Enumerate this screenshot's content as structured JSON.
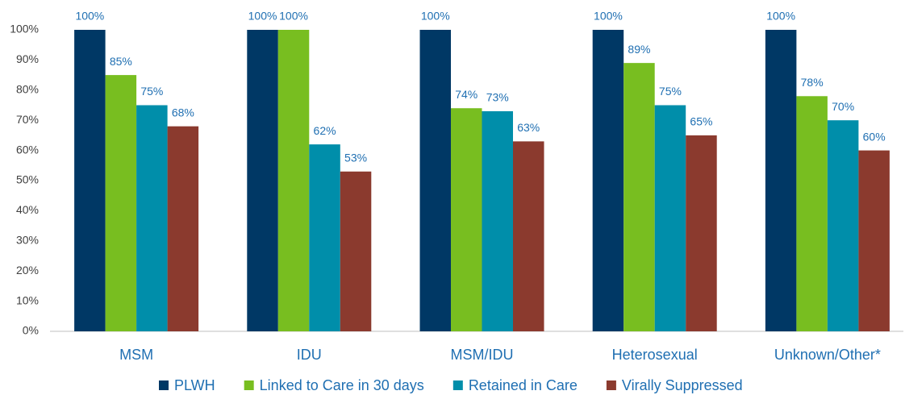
{
  "chart_data": {
    "type": "bar",
    "categories": [
      "MSM",
      "IDU",
      "MSM/IDU",
      "Heterosexual",
      "Unknown/Other*"
    ],
    "series": [
      {
        "name": "PLWH",
        "color": "#003865",
        "values": [
          100,
          100,
          100,
          100,
          100
        ],
        "value_labels": [
          "100%",
          "100%",
          "100%",
          "100%",
          "100%"
        ]
      },
      {
        "name": "Linked to Care in 30 days",
        "color": "#78be20",
        "values": [
          85,
          100,
          74,
          89,
          78
        ],
        "value_labels": [
          "85%",
          "100%",
          "74%",
          "89%",
          "78%"
        ]
      },
      {
        "name": "Retained in Care",
        "color": "#008eaa",
        "values": [
          75,
          62,
          73,
          75,
          70
        ],
        "value_labels": [
          "75%",
          "62%",
          "73%",
          "75%",
          "70%"
        ]
      },
      {
        "name": "Virally Suppressed",
        "color": "#8b3a2e",
        "values": [
          68,
          53,
          63,
          65,
          60
        ],
        "value_labels": [
          "68%",
          "53%",
          "63%",
          "65%",
          "60%"
        ]
      }
    ],
    "ylim": [
      0,
      100
    ],
    "yticks": [
      {
        "value": 0,
        "label": "0%"
      },
      {
        "value": 10,
        "label": "10%"
      },
      {
        "value": 20,
        "label": "20%"
      },
      {
        "value": 30,
        "label": "30%"
      },
      {
        "value": 40,
        "label": "40%"
      },
      {
        "value": 50,
        "label": "50%"
      },
      {
        "value": 60,
        "label": "60%"
      },
      {
        "value": 70,
        "label": "70%"
      },
      {
        "value": 80,
        "label": "80%"
      },
      {
        "value": 90,
        "label": "90%"
      },
      {
        "value": 100,
        "label": "100%"
      }
    ],
    "grid": false,
    "legend": "bottom"
  }
}
